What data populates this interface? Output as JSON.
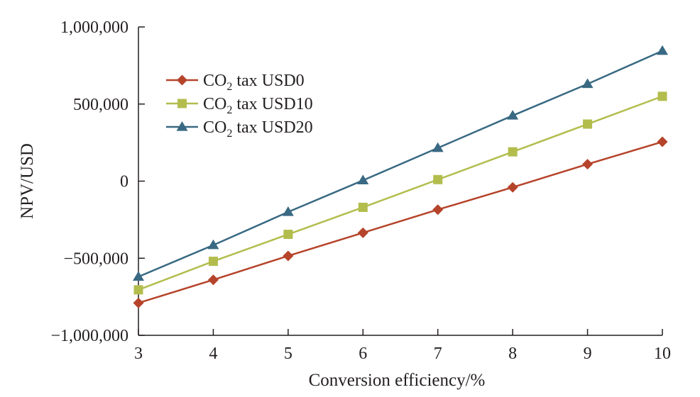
{
  "chart_data": {
    "type": "line",
    "title": "",
    "xlabel": "Conversion efficiency/%",
    "ylabel": "NPV/USD",
    "x": [
      3,
      4,
      5,
      6,
      7,
      8,
      9,
      10
    ],
    "xlim": [
      3,
      10
    ],
    "ylim": [
      -1000000,
      1000000
    ],
    "yticks": [
      -1000000,
      -500000,
      0,
      500000,
      1000000
    ],
    "ytick_labels": [
      "−1,000,000",
      "−500,000",
      "0",
      "500,000",
      "1,000,000"
    ],
    "xtick_labels": [
      "3",
      "4",
      "5",
      "6",
      "7",
      "8",
      "9",
      "10"
    ],
    "grid": false,
    "legend_position": "top-left",
    "series": [
      {
        "name": "CO2 tax USD0",
        "legend_main": "CO",
        "legend_sub": "2",
        "legend_rest": " tax USD0",
        "marker": "diamond",
        "color": "#b5442a",
        "values": [
          -790000,
          -640000,
          -485000,
          -335000,
          -185000,
          -40000,
          110000,
          255000
        ]
      },
      {
        "name": "CO2 tax USD10",
        "legend_main": "CO",
        "legend_sub": "2",
        "legend_rest": " tax USD10",
        "marker": "square",
        "color": "#b3bd4d",
        "values": [
          -705000,
          -520000,
          -345000,
          -170000,
          10000,
          190000,
          370000,
          550000
        ]
      },
      {
        "name": "CO2 tax USD20",
        "legend_main": "CO",
        "legend_sub": "2",
        "legend_rest": " tax USD20",
        "marker": "triangle",
        "color": "#396983",
        "values": [
          -620000,
          -415000,
          -200000,
          5000,
          215000,
          425000,
          630000,
          845000
        ]
      }
    ]
  }
}
